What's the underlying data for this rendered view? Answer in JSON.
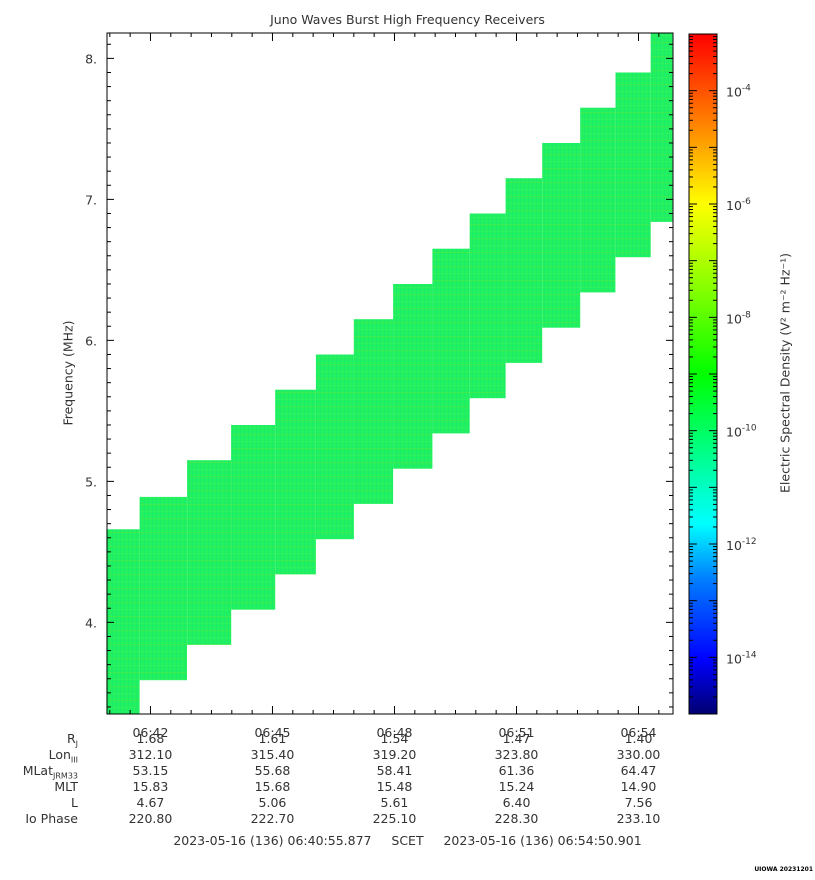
{
  "title": "Juno Waves Burst High Frequency Receivers",
  "y_axis_label": "Frequency (MHz)",
  "colorbar_label": "Electric Spectral Density (V² m⁻² Hz⁻¹)",
  "colorbar": {
    "scale": "log",
    "range": [
      1e-15,
      0.001
    ],
    "colormap": [
      "#00007f",
      "#0000ff",
      "#0080ff",
      "#00ffff",
      "#00ff80",
      "#00ff00",
      "#80ff00",
      "#ffff00",
      "#ff8000",
      "#ff0000"
    ],
    "ticks": [
      {
        "base": "10",
        "exp": "-4",
        "value": 0.0001
      },
      {
        "base": "10",
        "exp": "-6",
        "value": 1e-06
      },
      {
        "base": "10",
        "exp": "-8",
        "value": 1e-08
      },
      {
        "base": "10",
        "exp": "-10",
        "value": 1e-10
      },
      {
        "base": "10",
        "exp": "-12",
        "value": 1e-12
      },
      {
        "base": "10",
        "exp": "-14",
        "value": 1e-14
      }
    ]
  },
  "ephemeris": {
    "row_labels": [
      "R_J",
      "Lon_III",
      "MLat_JRM33",
      "MLT",
      "L",
      "Io Phase"
    ],
    "columns": [
      {
        "time": "06:42",
        "values": [
          "1.68",
          "312.10",
          "53.15",
          "15.83",
          "4.67",
          "220.80"
        ]
      },
      {
        "time": "06:45",
        "values": [
          "1.61",
          "315.40",
          "55.68",
          "15.68",
          "5.06",
          "222.70"
        ]
      },
      {
        "time": "06:48",
        "values": [
          "1.54",
          "319.20",
          "58.41",
          "15.48",
          "5.61",
          "225.10"
        ]
      },
      {
        "time": "06:51",
        "values": [
          "1.47",
          "323.80",
          "61.36",
          "15.24",
          "6.40",
          "228.30"
        ]
      },
      {
        "time": "06:54",
        "values": [
          "1.40",
          "330.00",
          "64.47",
          "14.90",
          "7.56",
          "233.10"
        ]
      }
    ]
  },
  "scet": {
    "start": "2023-05-16 (136) 06:40:55.877",
    "label": "SCET",
    "end": "2023-05-16 (136) 06:54:50.901"
  },
  "footer": "UIOWA 20231201",
  "chart_data": {
    "type": "heatmap",
    "title": "Juno Waves Burst High Frequency Receivers",
    "xlabel": "",
    "ylabel": "Frequency (MHz)",
    "x_start": "06:40:55.877",
    "x_end": "06:54:50.901",
    "ylim": [
      3.35,
      8.18
    ],
    "x_ticks": [
      "06:42",
      "06:45",
      "06:48",
      "06:51",
      "06:54"
    ],
    "y_ticks": [
      4,
      5,
      6,
      7,
      8
    ],
    "z_scale": "log",
    "z_range": [
      1e-15,
      0.001
    ],
    "background_level_approx": 1e-10,
    "blocks": [
      {
        "t_start": "06:40:55",
        "t_end": "06:41:44",
        "f_low": 3.35,
        "f_high": 4.66
      },
      {
        "t_start": "06:41:44",
        "t_end": "06:42:54",
        "f_low": 3.59,
        "f_high": 4.89
      },
      {
        "t_start": "06:42:54",
        "t_end": "06:43:59",
        "f_low": 3.84,
        "f_high": 5.15
      },
      {
        "t_start": "06:43:59",
        "t_end": "06:45:04",
        "f_low": 4.09,
        "f_high": 5.4
      },
      {
        "t_start": "06:45:04",
        "t_end": "06:46:04",
        "f_low": 4.34,
        "f_high": 5.65
      },
      {
        "t_start": "06:46:04",
        "t_end": "06:47:00",
        "f_low": 4.59,
        "f_high": 5.9
      },
      {
        "t_start": "06:47:00",
        "t_end": "06:47:58",
        "f_low": 4.84,
        "f_high": 6.15
      },
      {
        "t_start": "06:47:58",
        "t_end": "06:48:56",
        "f_low": 5.09,
        "f_high": 6.4
      },
      {
        "t_start": "06:48:56",
        "t_end": "06:49:51",
        "f_low": 5.34,
        "f_high": 6.65
      },
      {
        "t_start": "06:49:51",
        "t_end": "06:50:44",
        "f_low": 5.59,
        "f_high": 6.9
      },
      {
        "t_start": "06:50:44",
        "t_end": "06:51:38",
        "f_low": 5.84,
        "f_high": 7.15
      },
      {
        "t_start": "06:51:38",
        "t_end": "06:52:34",
        "f_low": 6.09,
        "f_high": 7.4
      },
      {
        "t_start": "06:52:34",
        "t_end": "06:53:26",
        "f_low": 6.34,
        "f_high": 7.65
      },
      {
        "t_start": "06:53:26",
        "t_end": "06:54:18",
        "f_low": 6.59,
        "f_high": 7.9
      },
      {
        "t_start": "06:54:18",
        "t_end": "06:54:50",
        "f_low": 6.84,
        "f_high": 8.18
      }
    ]
  }
}
